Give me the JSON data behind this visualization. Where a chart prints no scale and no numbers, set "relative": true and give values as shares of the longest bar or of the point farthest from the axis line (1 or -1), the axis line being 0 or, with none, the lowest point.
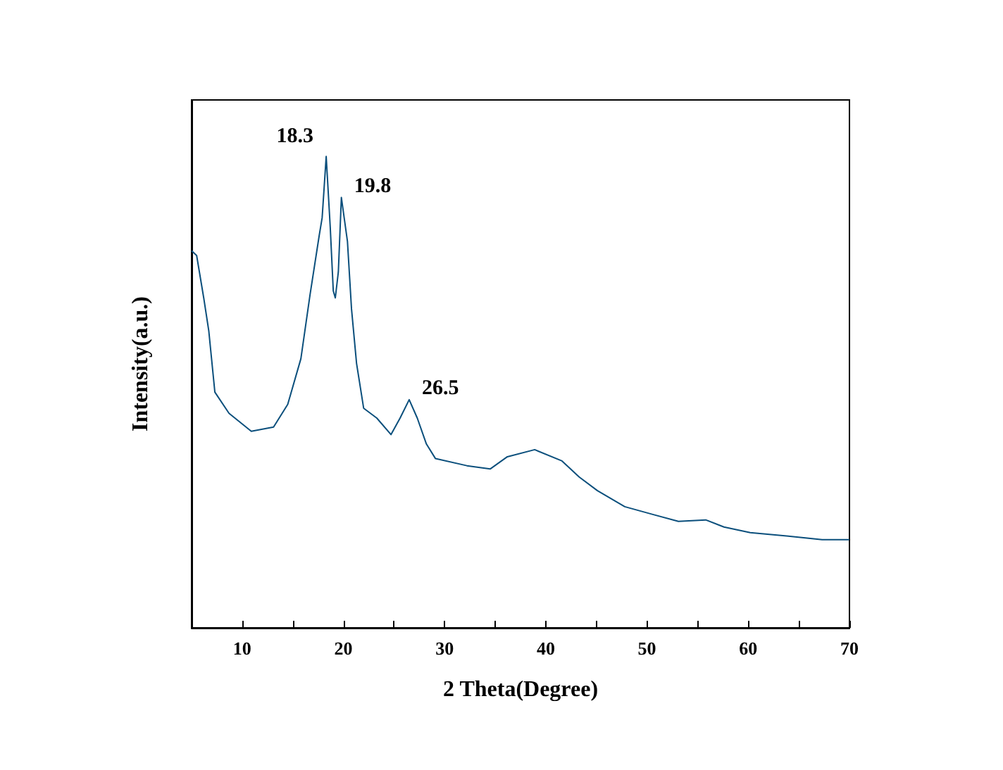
{
  "chart_data": {
    "type": "line",
    "relative": true,
    "xlabel": "2 Theta(Degree)",
    "ylabel": "Intensity(a.u.)",
    "xlim": [
      5,
      70
    ],
    "xticks": [
      10,
      {
        "value": 15,
        "label": null
      },
      20,
      {
        "value": 25,
        "label": null
      },
      30,
      {
        "value": 35,
        "label": null
      },
      40,
      {
        "value": 45,
        "label": null
      },
      50,
      {
        "value": 55,
        "label": null
      },
      60,
      {
        "value": 65,
        "label": null
      },
      70
    ],
    "grid": false,
    "marker": "none",
    "line_style": "solid",
    "series": [
      {
        "color": "#0b4f7c",
        "x": [
          5,
          5.5,
          6.2,
          6.7,
          7.3,
          8.7,
          10.9,
          13.1,
          14.5,
          15.8,
          16.7,
          17.6,
          17.9,
          18.3,
          18.7,
          19.0,
          19.2,
          19.5,
          19.8,
          20.4,
          20.8,
          21.3,
          22.0,
          23.3,
          24.7,
          25.6,
          26.5,
          27.3,
          28.2,
          29.1,
          32.2,
          34.5,
          36.2,
          38.9,
          41.6,
          43.3,
          45.1,
          47.8,
          50.5,
          53.1,
          55.8,
          57.6,
          60.2,
          63.8,
          67.3,
          70
        ],
        "values": [
          0.8,
          0.79,
          0.7,
          0.63,
          0.5,
          0.455,
          0.417,
          0.426,
          0.474,
          0.571,
          0.706,
          0.831,
          0.87,
          1.0,
          0.85,
          0.715,
          0.7,
          0.755,
          0.913,
          0.82,
          0.677,
          0.561,
          0.466,
          0.445,
          0.41,
          0.445,
          0.484,
          0.445,
          0.39,
          0.359,
          0.344,
          0.337,
          0.363,
          0.378,
          0.354,
          0.32,
          0.291,
          0.257,
          0.241,
          0.226,
          0.229,
          0.214,
          0.202,
          0.195,
          0.187,
          0.187
        ]
      }
    ],
    "annotations": [
      {
        "text": "18.3",
        "x": 18.3,
        "y": 1.0
      },
      {
        "text": "19.8",
        "x": 19.8,
        "y": 0.913
      },
      {
        "text": "26.5",
        "x": 26.5,
        "y": 0.484
      }
    ]
  }
}
